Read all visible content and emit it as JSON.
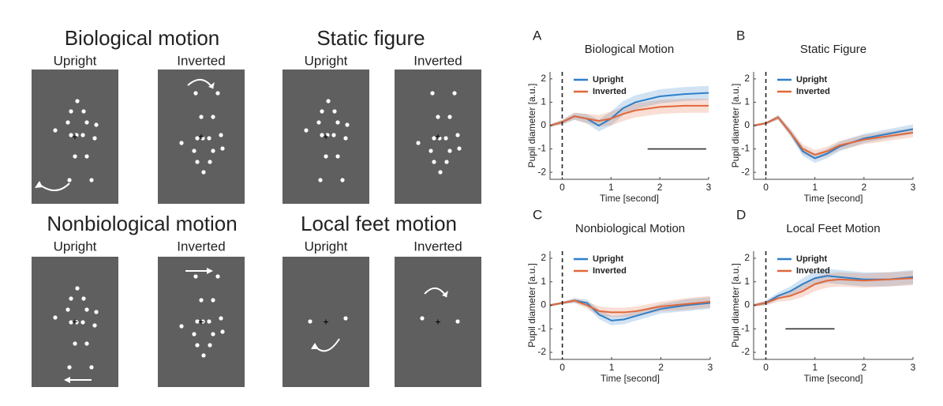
{
  "stimuli": [
    {
      "title": "Biological motion",
      "panels": [
        "Upright",
        "Inverted"
      ]
    },
    {
      "title": "Static figure",
      "panels": [
        "Upright",
        "Inverted"
      ]
    },
    {
      "title": "Nonbiological motion",
      "panels": [
        "Upright",
        "Inverted"
      ]
    },
    {
      "title": "Local feet motion",
      "panels": [
        "Upright",
        "Inverted"
      ]
    }
  ],
  "chart_data": [
    {
      "type": "line",
      "letter": "A",
      "title": "Biological Motion",
      "xlabel": "Time [second]",
      "ylabel": "Pupil diameter [a.u.]",
      "x": [
        -0.25,
        0,
        0.25,
        0.5,
        0.75,
        1,
        1.25,
        1.5,
        2,
        2.5,
        3
      ],
      "series": [
        {
          "name": "Upright",
          "color": "#2f7fc8",
          "values": [
            0,
            0.15,
            0.4,
            0.3,
            0,
            0.3,
            0.75,
            1,
            1.25,
            1.35,
            1.4
          ],
          "errors": [
            0.05,
            0.1,
            0.15,
            0.2,
            0.25,
            0.3,
            0.3,
            0.3,
            0.3,
            0.3,
            0.3
          ]
        },
        {
          "name": "Inverted",
          "color": "#e0683a",
          "values": [
            0,
            0.15,
            0.4,
            0.3,
            0.2,
            0.3,
            0.5,
            0.65,
            0.8,
            0.85,
            0.85
          ],
          "errors": [
            0.05,
            0.1,
            0.15,
            0.2,
            0.25,
            0.3,
            0.3,
            0.3,
            0.3,
            0.3,
            0.3
          ]
        }
      ],
      "xlim": [
        -0.25,
        3
      ],
      "ylim": [
        -2.3,
        2.3
      ],
      "xticks": [
        0,
        1,
        2,
        3
      ],
      "yticks": [
        -2,
        -1,
        0,
        1,
        2
      ],
      "event_x": 0,
      "sig_bar": {
        "x": [
          1.75,
          2.95
        ],
        "y": -1
      },
      "legend": "upper left"
    },
    {
      "type": "line",
      "letter": "B",
      "title": "Static Figure",
      "xlabel": "Time [second]",
      "ylabel": "Pupil diameter [a.u.]",
      "x": [
        -0.25,
        0,
        0.25,
        0.5,
        0.75,
        1,
        1.25,
        1.5,
        2,
        2.5,
        3
      ],
      "series": [
        {
          "name": "Upright",
          "color": "#2f7fc8",
          "values": [
            0,
            0.1,
            0.35,
            -0.3,
            -1.1,
            -1.4,
            -1.2,
            -0.9,
            -0.55,
            -0.35,
            -0.15
          ],
          "errors": [
            0.05,
            0.05,
            0.1,
            0.15,
            0.2,
            0.2,
            0.2,
            0.2,
            0.2,
            0.2,
            0.2
          ]
        },
        {
          "name": "Inverted",
          "color": "#e0683a",
          "values": [
            0,
            0.1,
            0.35,
            -0.3,
            -1,
            -1.25,
            -1.1,
            -0.85,
            -0.6,
            -0.45,
            -0.3
          ],
          "errors": [
            0.05,
            0.05,
            0.1,
            0.15,
            0.2,
            0.2,
            0.2,
            0.2,
            0.2,
            0.2,
            0.2
          ]
        }
      ],
      "xlim": [
        -0.25,
        3
      ],
      "ylim": [
        -2.3,
        2.3
      ],
      "xticks": [
        0,
        1,
        2,
        3
      ],
      "yticks": [
        -2,
        -1,
        0,
        1,
        2
      ],
      "event_x": 0,
      "legend": "upper left"
    },
    {
      "type": "line",
      "letter": "C",
      "title": "Nonbiological Motion",
      "xlabel": "Time [second]",
      "ylabel": "Pupil diameter [a.u.]",
      "x": [
        -0.25,
        0,
        0.25,
        0.5,
        0.75,
        1,
        1.25,
        1.5,
        2,
        2.5,
        3
      ],
      "series": [
        {
          "name": "Upright",
          "color": "#2f7fc8",
          "values": [
            0,
            0.1,
            0.2,
            0.1,
            -0.4,
            -0.65,
            -0.6,
            -0.45,
            -0.15,
            0,
            0.1
          ],
          "errors": [
            0.05,
            0.05,
            0.1,
            0.15,
            0.2,
            0.2,
            0.2,
            0.2,
            0.2,
            0.25,
            0.25
          ]
        },
        {
          "name": "Inverted",
          "color": "#e0683a",
          "values": [
            0,
            0.1,
            0.2,
            0,
            -0.25,
            -0.3,
            -0.3,
            -0.25,
            -0.05,
            0.05,
            0.15
          ],
          "errors": [
            0.05,
            0.05,
            0.1,
            0.15,
            0.2,
            0.2,
            0.2,
            0.2,
            0.2,
            0.25,
            0.25
          ]
        }
      ],
      "xlim": [
        -0.25,
        3
      ],
      "ylim": [
        -2.3,
        2.3
      ],
      "xticks": [
        0,
        1,
        2,
        3
      ],
      "yticks": [
        -2,
        -1,
        0,
        1,
        2
      ],
      "event_x": 0,
      "legend": "upper left"
    },
    {
      "type": "line",
      "letter": "D",
      "title": "Local Feet Motion",
      "xlabel": "Time [second]",
      "ylabel": "Pupil diameter [a.u.]",
      "x": [
        -0.25,
        0,
        0.25,
        0.5,
        0.75,
        1,
        1.25,
        1.5,
        2,
        2.5,
        3
      ],
      "series": [
        {
          "name": "Upright",
          "color": "#2f7fc8",
          "values": [
            0,
            0.1,
            0.4,
            0.6,
            0.9,
            1.15,
            1.25,
            1.2,
            1.1,
            1.1,
            1.2
          ],
          "errors": [
            0.05,
            0.1,
            0.15,
            0.2,
            0.25,
            0.3,
            0.3,
            0.3,
            0.3,
            0.3,
            0.3
          ]
        },
        {
          "name": "Inverted",
          "color": "#e0683a",
          "values": [
            0,
            0.1,
            0.3,
            0.4,
            0.6,
            0.9,
            1.05,
            1.1,
            1.05,
            1.1,
            1.15
          ],
          "errors": [
            0.05,
            0.1,
            0.15,
            0.2,
            0.25,
            0.3,
            0.3,
            0.3,
            0.3,
            0.3,
            0.3
          ]
        }
      ],
      "xlim": [
        -0.25,
        3
      ],
      "ylim": [
        -2.3,
        2.3
      ],
      "xticks": [
        0,
        1,
        2,
        3
      ],
      "yticks": [
        -2,
        -1,
        0,
        1,
        2
      ],
      "event_x": 0,
      "sig_bar": {
        "x": [
          0.4,
          1.4
        ],
        "y": -1
      },
      "legend": "upper left"
    }
  ]
}
